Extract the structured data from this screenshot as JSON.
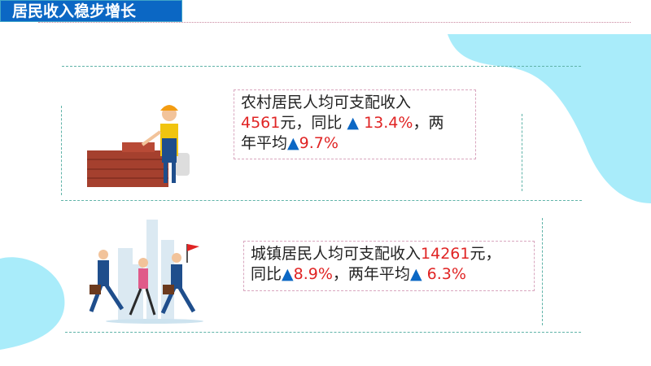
{
  "title": "居民收入稳步增长",
  "colors": {
    "accent_blue": "#0b67c4",
    "highlight_red": "#e02424",
    "blob": "#a9ecfa",
    "divider_teal": "#5fb3a8",
    "divider_red": "#c9879f"
  },
  "rural": {
    "label": "农村居民人均可支配收入",
    "amount": "4561",
    "unit": "元，同比",
    "yoy_icon": "▲",
    "yoy": "13.4%",
    "sep": "，两",
    "line3": "年平均",
    "avg_icon": "▲",
    "avg": "9.7%"
  },
  "urban": {
    "label": "城镇居民人均可支配收入",
    "amount": "14261",
    "unit": "元，",
    "line2a": "同比",
    "yoy_icon": "▲",
    "yoy": "8.9%",
    "sep": "，两年平均",
    "avg_icon": "▲",
    "avg": "6.3%"
  },
  "icons": {
    "rural": "bricklayer-worker-illustration",
    "urban": "business-people-running-illustration"
  }
}
